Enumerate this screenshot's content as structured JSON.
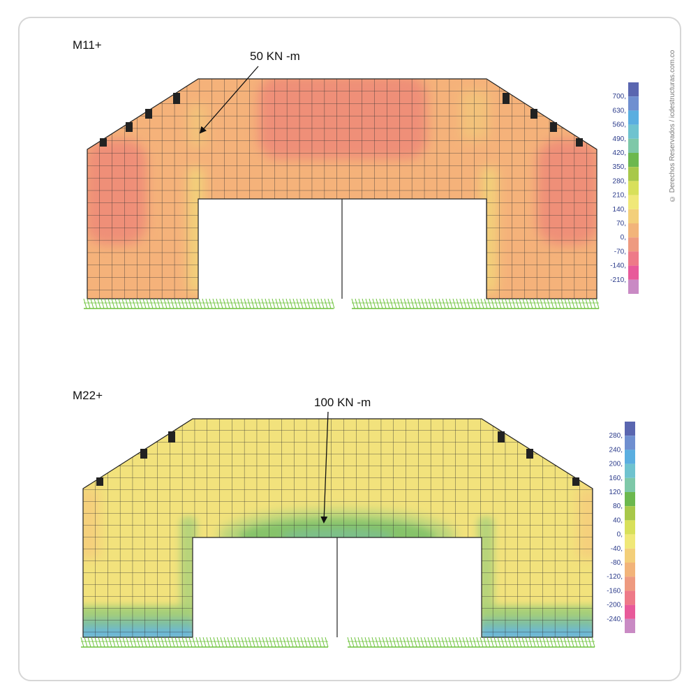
{
  "copyright": "© Derechos Reservados / icdestructuras.com.co",
  "panels": [
    {
      "id": "m11",
      "title": "M11+",
      "annotation": "50 KN -m",
      "legend_ticks": [
        "700,",
        "630,",
        "560,",
        "490,",
        "420,",
        "350,",
        "280,",
        "210,",
        "140,",
        "70,",
        "0,",
        "-70,",
        "-140,",
        "-210,"
      ],
      "legend_colors": [
        "#5a66b0",
        "#6f8fd0",
        "#5aaee0",
        "#6fc3cf",
        "#7ec8a8",
        "#6cb84e",
        "#a8c84a",
        "#d8e05a",
        "#f0e878",
        "#f3cf7a",
        "#f2b47a",
        "#ee9a80",
        "#ee7a88",
        "#e85a9a",
        "#c98ac4"
      ]
    },
    {
      "id": "m22",
      "title": "M22+",
      "annotation": "100 KN -m",
      "legend_ticks": [
        "280,",
        "240,",
        "200,",
        "160,",
        "120,",
        "80,",
        "40,",
        "0,",
        "-40,",
        "-80,",
        "-120,",
        "-160,",
        "-200,",
        "-240,"
      ],
      "legend_colors": [
        "#5a66b0",
        "#6f8fd0",
        "#5aaee0",
        "#6fc3cf",
        "#7ec8a8",
        "#6cb84e",
        "#a8c84a",
        "#d8e05a",
        "#f0e878",
        "#f3cf7a",
        "#f2b47a",
        "#ee9a80",
        "#ee7a88",
        "#e85a9a",
        "#c98ac4"
      ]
    }
  ]
}
